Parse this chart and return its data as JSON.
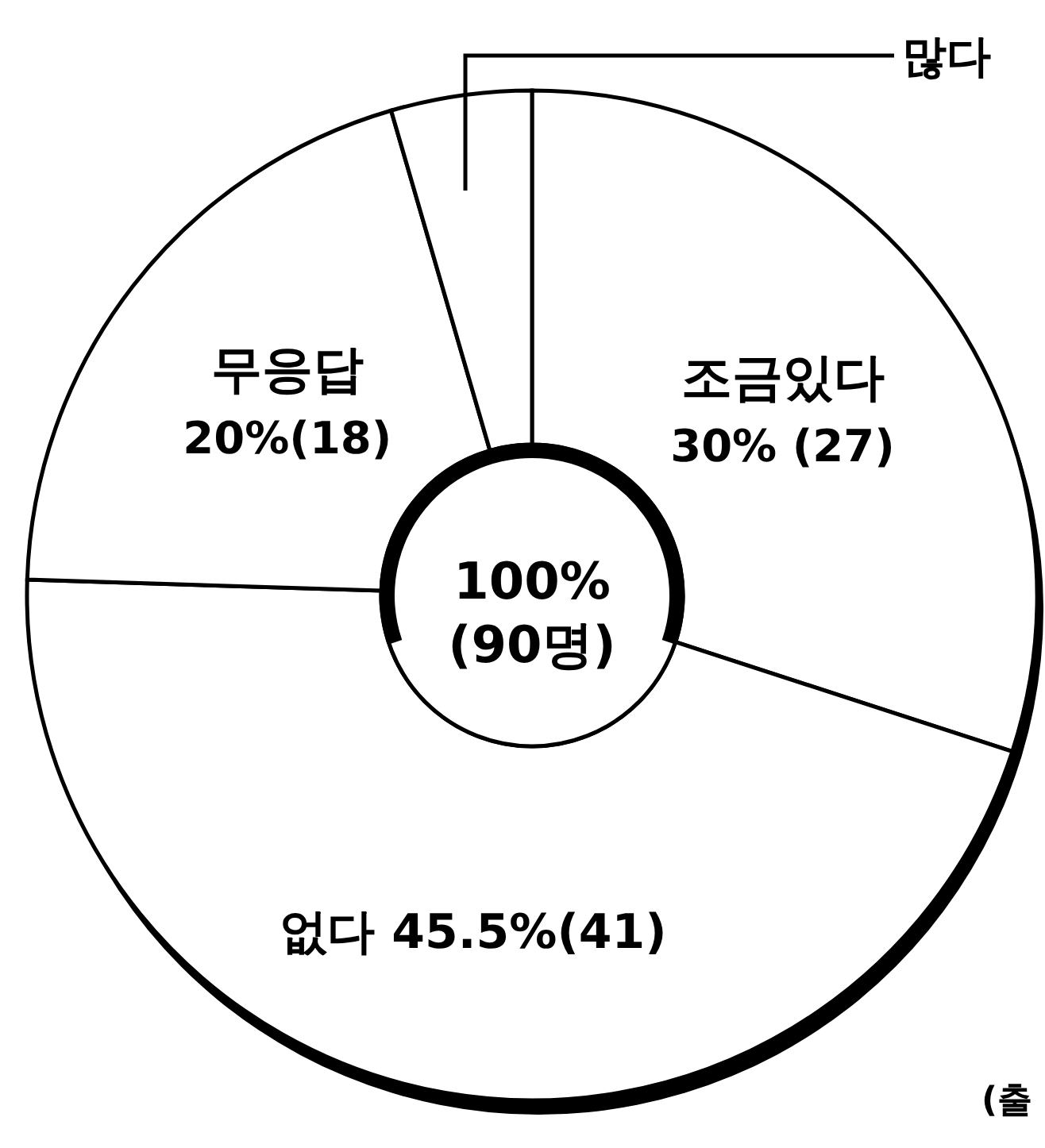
{
  "chart_data": {
    "type": "donut",
    "categories": [
      "조금있다",
      "없다",
      "무응답",
      "많다"
    ],
    "values": [
      30,
      45.5,
      20,
      4.5
    ],
    "value_labels": [
      "30%  (27)",
      "45.5%(41)",
      "20%(18)",
      null
    ],
    "colors": [
      "#ffffff",
      "#ffffff",
      "#ffffff",
      "#ffffff"
    ],
    "annotations": [
      "100%",
      "(90명)",
      "(출"
    ]
  }
}
